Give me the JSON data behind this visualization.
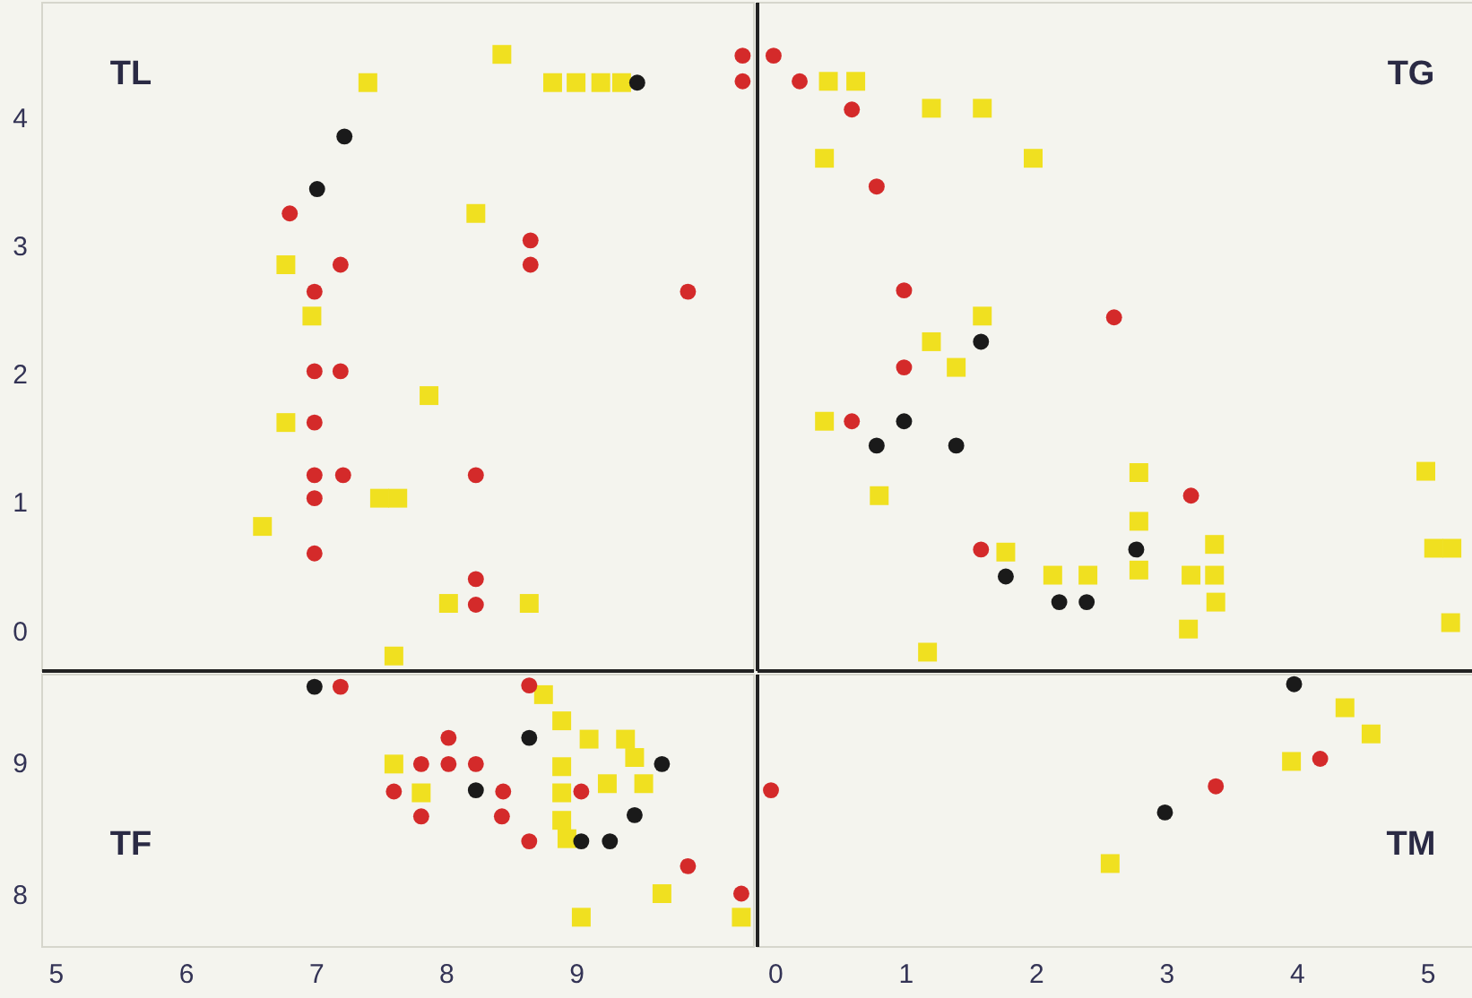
{
  "chart_data": [
    {
      "type": "scatter",
      "annotations": [
        "TL"
      ],
      "xlim": [
        4.89,
        10.36
      ],
      "ylim": [
        -0.31,
        4.9
      ],
      "xticks": [
        5,
        6,
        7,
        8,
        9
      ],
      "yticks": [
        0,
        1,
        2,
        3,
        4
      ],
      "tick_labels": "y",
      "series": [
        {
          "color": "#f0e020",
          "marker": "square",
          "x": [
            8.43,
            7.4,
            8.82,
            9.0,
            9.19,
            9.35,
            8.23,
            6.77,
            6.97,
            7.87,
            6.77,
            7.49,
            7.63,
            6.59,
            8.02,
            8.64,
            7.6
          ],
          "values": [
            4.49,
            4.27,
            4.27,
            4.27,
            4.27,
            4.27,
            3.25,
            2.85,
            2.45,
            1.83,
            1.62,
            1.03,
            1.03,
            0.81,
            0.21,
            0.21,
            -0.2
          ]
        },
        {
          "color": "#d42a2a",
          "marker": "circle",
          "x": [
            10.28,
            10.28,
            6.8,
            7.19,
            8.65,
            8.65,
            9.86,
            6.99,
            6.99,
            7.19,
            6.99,
            6.99,
            7.21,
            8.23,
            6.99,
            6.99,
            8.23,
            8.23
          ],
          "values": [
            4.48,
            4.28,
            3.25,
            2.85,
            3.04,
            2.85,
            2.64,
            2.64,
            2.02,
            2.02,
            1.62,
            1.21,
            1.21,
            1.21,
            1.03,
            0.6,
            0.4,
            0.2
          ]
        },
        {
          "color": "#1a1a1a",
          "marker": "circle",
          "x": [
            9.47,
            7.22,
            7.01
          ],
          "values": [
            4.27,
            3.85,
            3.44
          ]
        }
      ]
    },
    {
      "type": "scatter",
      "annotations": [
        "TG"
      ],
      "xlim": [
        -0.14,
        5.44
      ],
      "ylim": [
        -0.31,
        4.9
      ],
      "xticks": [
        0,
        1,
        2,
        3,
        4,
        5
      ],
      "yticks": [
        0,
        1,
        2,
        3,
        4
      ],
      "tick_labels": false,
      "series": [
        {
          "color": "#f0e020",
          "marker": "square",
          "x": [
            0.41,
            0.62,
            0.38,
            1.2,
            1.59,
            1.98,
            1.59,
            1.2,
            1.39,
            0.38,
            0.8,
            2.79,
            4.99,
            2.79,
            1.77,
            2.13,
            2.4,
            2.79,
            3.19,
            3.37,
            3.37,
            3.38,
            3.17,
            1.17,
            5.05,
            5.19,
            5.18
          ],
          "values": [
            4.28,
            4.28,
            3.68,
            4.07,
            4.07,
            3.68,
            2.45,
            2.25,
            2.05,
            1.63,
            1.05,
            1.23,
            1.24,
            0.85,
            0.61,
            0.43,
            0.43,
            0.47,
            0.43,
            0.43,
            0.67,
            0.22,
            0.01,
            -0.17,
            0.64,
            0.64,
            0.06
          ]
        },
        {
          "color": "#d42a2a",
          "marker": "circle",
          "x": [
            -0.01,
            0.19,
            0.59,
            0.78,
            0.99,
            2.6,
            0.99,
            0.59,
            3.19,
            1.58
          ],
          "values": [
            4.48,
            4.28,
            4.06,
            3.46,
            2.65,
            2.44,
            2.05,
            1.63,
            1.05,
            0.63
          ]
        },
        {
          "color": "#1a1a1a",
          "marker": "circle",
          "x": [
            1.58,
            0.99,
            0.78,
            1.39,
            2.77,
            1.77,
            2.18,
            2.39
          ],
          "values": [
            2.25,
            1.63,
            1.44,
            1.44,
            0.63,
            0.42,
            0.22,
            0.22
          ]
        }
      ]
    },
    {
      "type": "scatter",
      "annotations": [
        "TF"
      ],
      "xlim": [
        4.89,
        10.36
      ],
      "ylim": [
        7.6,
        9.68
      ],
      "xticks": [
        5,
        6,
        7,
        8,
        9
      ],
      "yticks": [
        8,
        9
      ],
      "series": [
        {
          "color": "#f0e020",
          "marker": "square",
          "x": [
            8.75,
            8.89,
            9.1,
            9.38,
            8.89,
            8.89,
            8.89,
            8.93,
            9.45,
            9.24,
            9.52,
            7.6,
            7.81,
            9.66,
            9.04,
            10.27
          ],
          "values": [
            9.52,
            9.32,
            9.18,
            9.18,
            8.97,
            8.77,
            8.56,
            8.42,
            9.04,
            8.84,
            8.84,
            8.99,
            8.77,
            8.0,
            7.82,
            7.82
          ]
        },
        {
          "color": "#d42a2a",
          "marker": "circle",
          "x": [
            7.19,
            8.64,
            8.02,
            7.81,
            8.02,
            8.23,
            7.6,
            8.44,
            9.04,
            7.81,
            8.43,
            8.64,
            9.86,
            10.27
          ],
          "values": [
            9.58,
            9.59,
            9.19,
            8.99,
            8.99,
            8.99,
            8.78,
            8.78,
            8.78,
            8.59,
            8.59,
            8.4,
            8.21,
            8.0
          ]
        },
        {
          "color": "#1a1a1a",
          "marker": "circle",
          "x": [
            6.99,
            8.64,
            9.66,
            8.23,
            9.45,
            9.04,
            9.26
          ],
          "values": [
            9.58,
            9.19,
            8.99,
            8.79,
            8.6,
            8.4,
            8.4
          ]
        }
      ]
    },
    {
      "type": "scatter",
      "annotations": [
        "TM"
      ],
      "xlim": [
        -0.14,
        5.44
      ],
      "ylim": [
        7.6,
        9.68
      ],
      "xticks": [
        0,
        1,
        2,
        3,
        4,
        5
      ],
      "yticks": [
        8,
        9
      ],
      "tick_labels": "x",
      "series": [
        {
          "color": "#f0e020",
          "marker": "square",
          "x": [
            4.37,
            4.57,
            3.96,
            2.57
          ],
          "values": [
            9.42,
            9.22,
            9.01,
            8.23
          ]
        },
        {
          "color": "#d42a2a",
          "marker": "circle",
          "x": [
            -0.03,
            3.38,
            4.18
          ],
          "values": [
            8.79,
            8.82,
            9.03
          ]
        },
        {
          "color": "#1a1a1a",
          "marker": "circle",
          "x": [
            3.98,
            2.99
          ],
          "values": [
            9.6,
            8.62
          ]
        }
      ]
    }
  ]
}
